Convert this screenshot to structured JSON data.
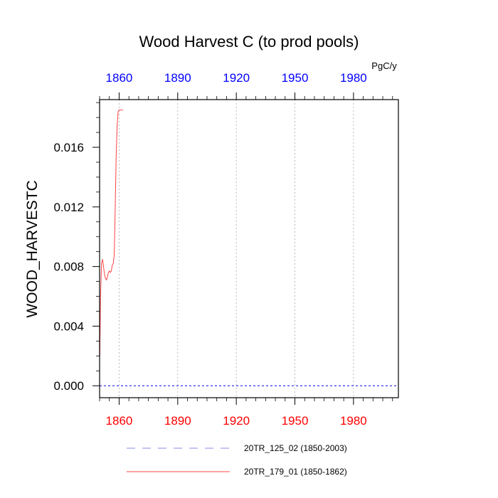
{
  "chart_data": {
    "type": "line",
    "title": "Wood Harvest C (to prod pools)",
    "units": "PgC/y",
    "ylabel": "WOOD_HARVESTC",
    "xlim": [
      1850,
      2003
    ],
    "ylim": [
      -0.0008,
      0.0192
    ],
    "x_ticks": [
      1860,
      1890,
      1920,
      1950,
      1980
    ],
    "y_ticks": [
      0.0,
      0.004,
      0.008,
      0.012,
      0.016
    ],
    "y_tick_labels": [
      "0.000",
      "0.004",
      "0.008",
      "0.012",
      "0.016"
    ],
    "grid": "vertical dotted at x ticks",
    "colors": {
      "top_tick_labels": "#0000ff",
      "bottom_tick_labels": "#ff0000",
      "grid": "#aaaaaa",
      "axes": "#000000"
    },
    "series": [
      {
        "name": "20TR_125_02 (1850-2003)",
        "color": "#3333ee",
        "style": "dashed",
        "x": [
          1850,
          1880,
          1910,
          1940,
          1970,
          2003
        ],
        "y": [
          0,
          0,
          0,
          0,
          0,
          0
        ]
      },
      {
        "name": "20TR_179_01 (1850-1862)",
        "color": "#ff4444",
        "style": "solid",
        "x": [
          1850.1,
          1850.5,
          1851,
          1851.5,
          1852,
          1852.5,
          1853,
          1853.5,
          1854,
          1854.5,
          1855,
          1855.5,
          1856,
          1856.5,
          1857,
          1857.5,
          1858,
          1858.5,
          1859,
          1859.5,
          1860,
          1860.5,
          1861,
          1861.5,
          1862
        ],
        "y": [
          0.002,
          0.006,
          0.0082,
          0.0085,
          0.008,
          0.0075,
          0.0072,
          0.0071,
          0.0073,
          0.0076,
          0.0077,
          0.0076,
          0.0077,
          0.0081,
          0.0082,
          0.0088,
          0.012,
          0.0155,
          0.0175,
          0.0184,
          0.0185,
          0.0185,
          0.0185,
          0.0185,
          0.0185
        ]
      }
    ]
  }
}
